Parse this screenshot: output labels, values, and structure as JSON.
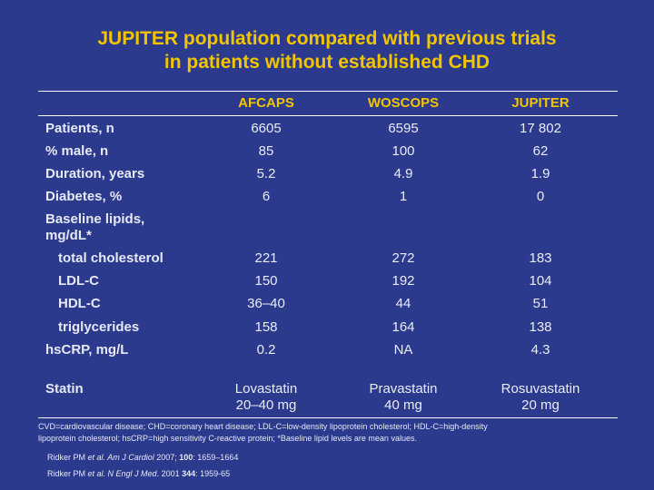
{
  "title_line1": "JUPITER population compared with previous trials",
  "title_line2": "in patients without established CHD",
  "columns": [
    "AFCAPS",
    "WOSCOPS",
    "JUPITER"
  ],
  "rows": [
    {
      "label": "Patients, n",
      "values": [
        "6605",
        "6595",
        "17 802"
      ]
    },
    {
      "label": "% male, n",
      "values": [
        "85",
        "100",
        "62"
      ]
    },
    {
      "label": "Duration, years",
      "values": [
        "5.2",
        "4.9",
        "1.9"
      ]
    },
    {
      "label": "Diabetes, %",
      "values": [
        "6",
        "1",
        "0"
      ]
    },
    {
      "label_line1": "Baseline lipids,",
      "label_line2": "mg/dL*"
    },
    {
      "label": "total cholesterol",
      "values": [
        "221",
        "272",
        "183"
      ]
    },
    {
      "label": "LDL-C",
      "values": [
        "150",
        "192",
        "104"
      ]
    },
    {
      "label": "HDL-C",
      "values": [
        "36–40",
        "44",
        "51"
      ]
    },
    {
      "label": "triglycerides",
      "values": [
        "158",
        "164",
        "138"
      ]
    },
    {
      "label": "hsCRP, mg/L",
      "values": [
        "0.2",
        "NA",
        "4.3"
      ]
    },
    {
      "label": "Statin",
      "values": [
        {
          "line1": "Lovastatin",
          "line2": "20–40 mg"
        },
        {
          "line1": "Pravastatin",
          "line2": "40 mg"
        },
        {
          "line1": "Rosuvastatin",
          "line2": "20 mg"
        }
      ]
    }
  ],
  "footnote_line1": "CVD=cardiovascular disease; CHD=coronary heart disease; LDL-C=low-density lipoprotein cholesterol; HDL-C=high-density",
  "footnote_line2": "lipoprotein cholesterol; hsCRP=high sensitivity C-reactive protein; *Baseline lipid levels are mean values.",
  "references": [
    {
      "author": "Ridker PM ",
      "etal": "et al.",
      "journal": " Am J Cardiol",
      "year": " 2007; ",
      "volume": "100",
      "pages": ": 1659–1664"
    },
    {
      "author": "Ridker PM ",
      "etal": "et al.",
      "journal": " N Engl J Med",
      "year": ". 2001 ",
      "volume": "344",
      "pages": ": 1959-65"
    }
  ],
  "colors": {
    "background": "#2b3a8c",
    "title": "#f2c500",
    "header": "#f2c500",
    "text": "#ffffff"
  }
}
